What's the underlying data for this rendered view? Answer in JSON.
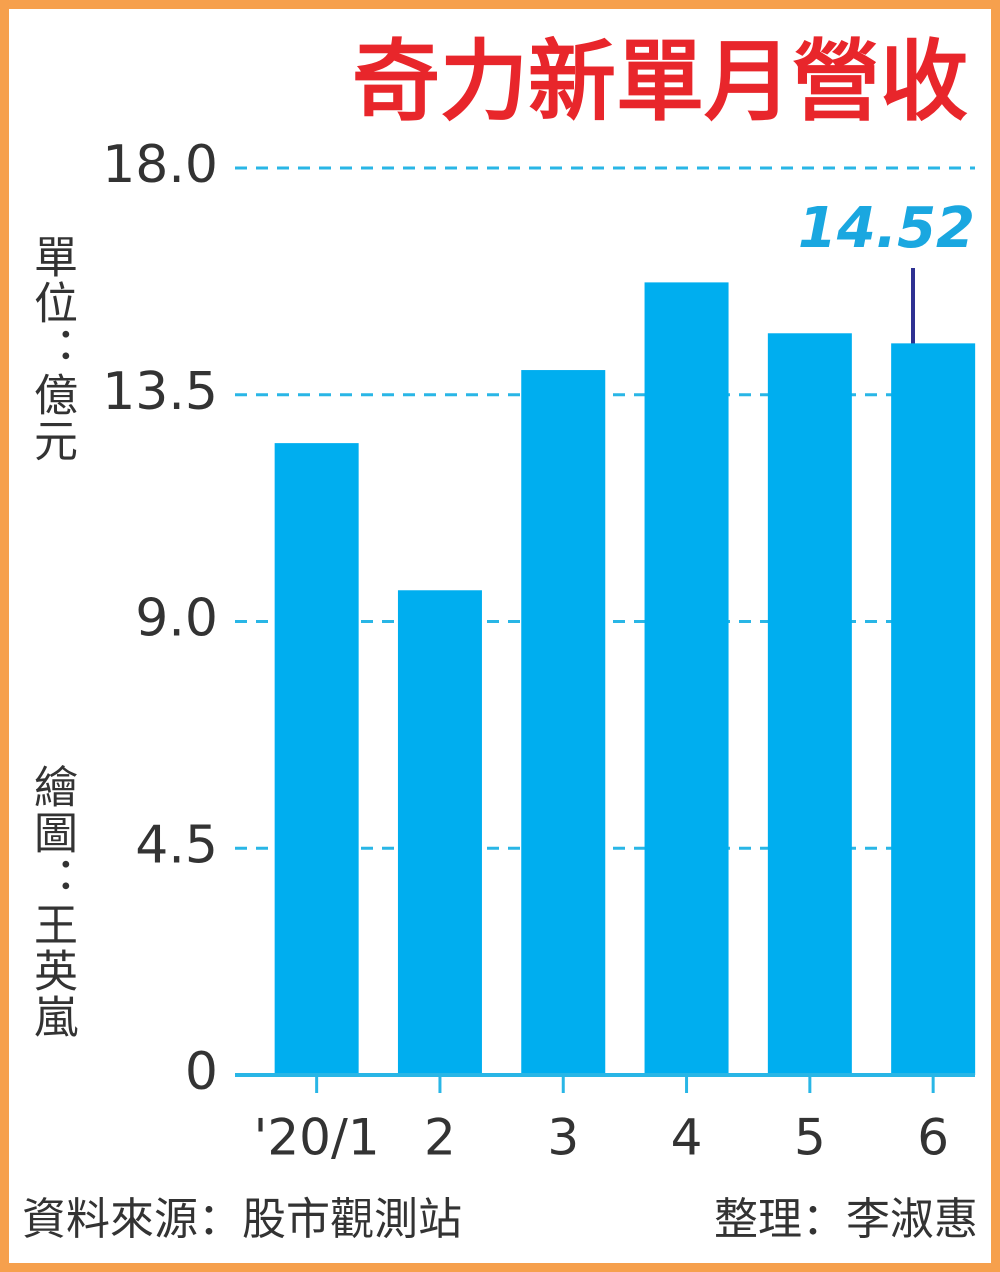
{
  "chart_data": {
    "type": "bar",
    "title": "奇力新單月營收",
    "unit_label": "單位：億元",
    "credit": "繪圖：王英嵐",
    "source": "資料來源：股市觀測站",
    "editor": "整理：李淑惠",
    "categories": [
      "'20/1",
      "2",
      "3",
      "4",
      "5",
      "6"
    ],
    "values": [
      12.54,
      9.62,
      13.99,
      15.73,
      14.72,
      14.52
    ],
    "highlight_label_index": 5,
    "color": "#00aeef",
    "label_color": "#1aa7e0",
    "ylim": [
      0,
      18
    ],
    "yticks": [
      0,
      4.5,
      {
        "value": 9,
        "label": "9.0"
      },
      13.5,
      {
        "value": 18,
        "label": "18.0"
      }
    ],
    "grid": true
  }
}
